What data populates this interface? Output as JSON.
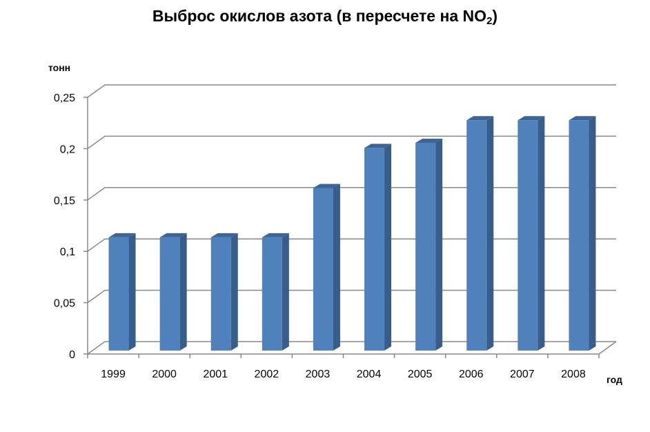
{
  "chart_data": {
    "type": "bar",
    "title": "Выброс окислов азота (в пересчете на NO",
    "title_subscript": "2",
    "title_suffix": ")",
    "ylabel": "тонн",
    "xlabel": "год",
    "categories": [
      "1999",
      "2000",
      "2001",
      "2002",
      "2003",
      "2004",
      "2005",
      "2006",
      "2007",
      "2008"
    ],
    "values": [
      0.115,
      0.115,
      0.115,
      0.115,
      0.163,
      0.202,
      0.207,
      0.229,
      0.229,
      0.229
    ],
    "ylim": [
      0,
      0.25
    ],
    "yticks": [
      "0",
      "0,05",
      "0,1",
      "0,15",
      "0,2",
      "0,25"
    ],
    "grid": true,
    "legend": "none",
    "colors": {
      "bar_front": "#4F81BD",
      "bar_side": "#385D8A",
      "bar_top": "#3D6494",
      "grid": "#888888"
    }
  }
}
